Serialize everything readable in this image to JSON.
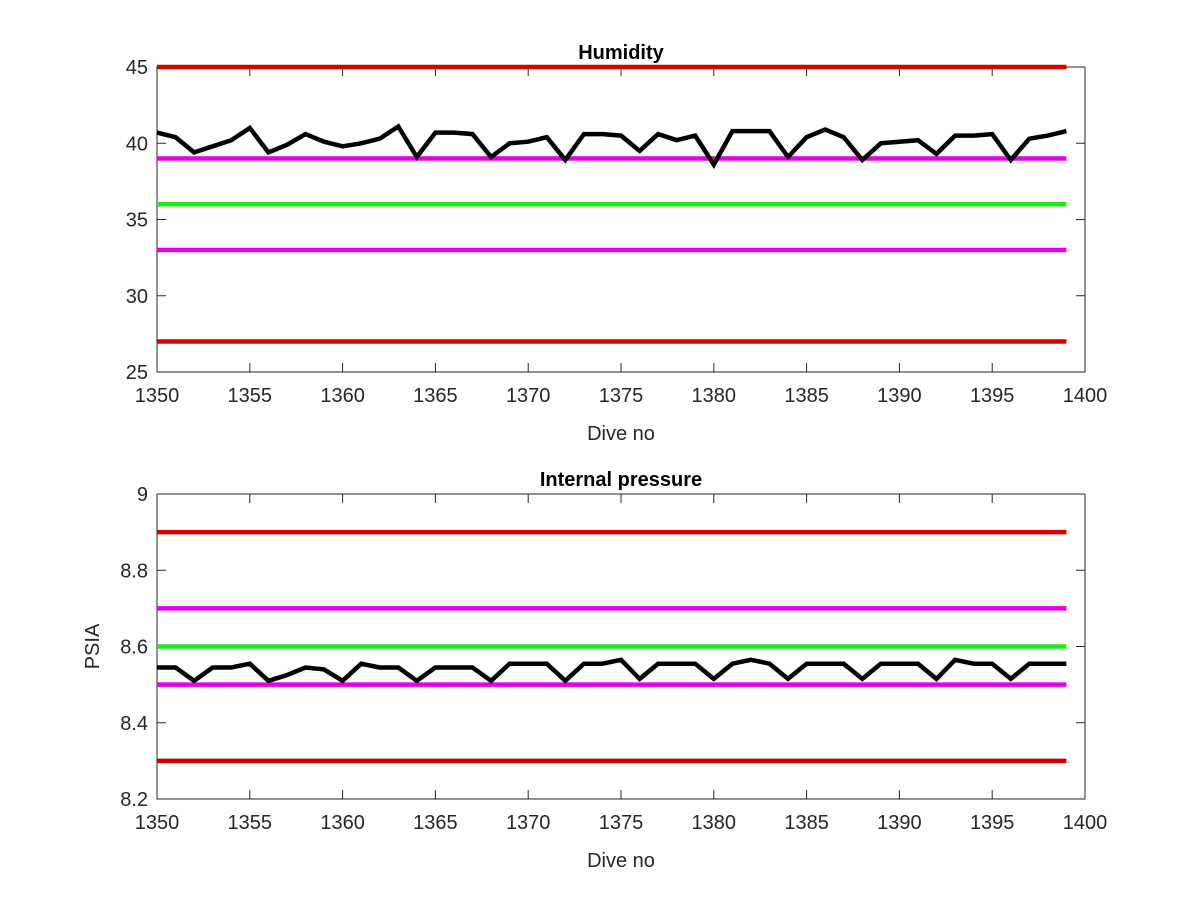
{
  "chart_data": [
    {
      "type": "line",
      "title": "Humidity",
      "xlabel": "Dive no",
      "ylabel": "",
      "xlim": [
        1350,
        1400
      ],
      "ylim": [
        25,
        45
      ],
      "xticks": [
        1350,
        1355,
        1360,
        1365,
        1370,
        1375,
        1380,
        1385,
        1390,
        1395,
        1400
      ],
      "yticks": [
        25,
        30,
        35,
        40,
        45
      ],
      "grid": false,
      "reference_lines": [
        {
          "y": 45,
          "color": "#d40000"
        },
        {
          "y": 39,
          "color": "#e600e6"
        },
        {
          "y": 36,
          "color": "#1aeb1a"
        },
        {
          "y": 33,
          "color": "#e600e6"
        },
        {
          "y": 27,
          "color": "#d40000"
        }
      ],
      "series": [
        {
          "color": "#000000",
          "x": [
            1350,
            1351,
            1352,
            1353,
            1354,
            1355,
            1356,
            1357,
            1358,
            1359,
            1360,
            1361,
            1362,
            1363,
            1364,
            1365,
            1366,
            1367,
            1368,
            1369,
            1370,
            1371,
            1372,
            1373,
            1374,
            1375,
            1376,
            1377,
            1378,
            1379,
            1380,
            1381,
            1382,
            1383,
            1384,
            1385,
            1386,
            1387,
            1388,
            1389,
            1390,
            1391,
            1392,
            1393,
            1394,
            1395,
            1396,
            1397,
            1398,
            1399
          ],
          "values": [
            40.7,
            40.4,
            39.4,
            39.8,
            40.2,
            41.0,
            39.4,
            39.9,
            40.6,
            40.1,
            39.8,
            40.0,
            40.3,
            41.1,
            39.1,
            40.7,
            40.7,
            40.6,
            39.1,
            40.0,
            40.1,
            40.4,
            38.9,
            40.6,
            40.6,
            40.5,
            39.5,
            40.6,
            40.2,
            40.5,
            38.6,
            40.8,
            40.8,
            40.8,
            39.1,
            40.4,
            40.9,
            40.4,
            38.9,
            40.0,
            40.1,
            40.2,
            39.3,
            40.5,
            40.5,
            40.6,
            38.9,
            40.3,
            40.5,
            40.8
          ]
        }
      ]
    },
    {
      "type": "line",
      "title": "Internal pressure",
      "xlabel": "Dive no",
      "ylabel": "PSIA",
      "xlim": [
        1350,
        1400
      ],
      "ylim": [
        8.2,
        9.0
      ],
      "xticks": [
        1350,
        1355,
        1360,
        1365,
        1370,
        1375,
        1380,
        1385,
        1390,
        1395,
        1400
      ],
      "yticks": [
        8.2,
        8.4,
        8.6,
        8.8,
        9.0
      ],
      "ytick_labels": [
        "8.2",
        "8.4",
        "8.6",
        "8.8",
        "9"
      ],
      "grid": false,
      "reference_lines": [
        {
          "y": 8.9,
          "color": "#d40000"
        },
        {
          "y": 8.7,
          "color": "#e600e6"
        },
        {
          "y": 8.6,
          "color": "#1aeb1a"
        },
        {
          "y": 8.5,
          "color": "#e600e6"
        },
        {
          "y": 8.3,
          "color": "#d40000"
        }
      ],
      "series": [
        {
          "color": "#000000",
          "x": [
            1350,
            1351,
            1352,
            1353,
            1354,
            1355,
            1356,
            1357,
            1358,
            1359,
            1360,
            1361,
            1362,
            1363,
            1364,
            1365,
            1366,
            1367,
            1368,
            1369,
            1370,
            1371,
            1372,
            1373,
            1374,
            1375,
            1376,
            1377,
            1378,
            1379,
            1380,
            1381,
            1382,
            1383,
            1384,
            1385,
            1386,
            1387,
            1388,
            1389,
            1390,
            1391,
            1392,
            1393,
            1394,
            1395,
            1396,
            1397,
            1398,
            1399
          ],
          "values": [
            8.545,
            8.545,
            8.51,
            8.545,
            8.545,
            8.555,
            8.51,
            8.525,
            8.545,
            8.54,
            8.51,
            8.555,
            8.545,
            8.545,
            8.51,
            8.545,
            8.545,
            8.545,
            8.51,
            8.555,
            8.555,
            8.555,
            8.51,
            8.555,
            8.555,
            8.565,
            8.515,
            8.555,
            8.555,
            8.555,
            8.515,
            8.555,
            8.565,
            8.555,
            8.515,
            8.555,
            8.555,
            8.555,
            8.515,
            8.555,
            8.555,
            8.555,
            8.515,
            8.565,
            8.555,
            8.555,
            8.515,
            8.555,
            8.555,
            8.555
          ]
        }
      ]
    }
  ]
}
